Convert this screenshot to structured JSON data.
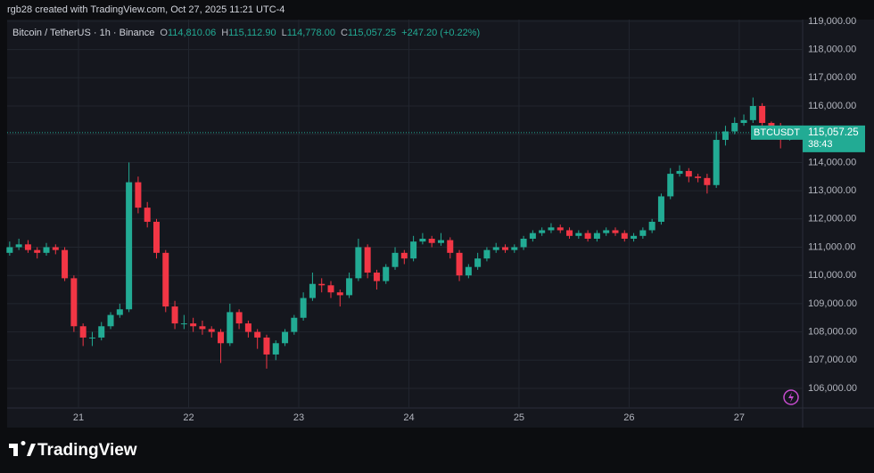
{
  "header": {
    "credit": "rgb28 created with TradingView.com, Oct 27, 2025 11:21 UTC-4",
    "symbol_info": "Bitcoin / TetherUS · 1h · Binance",
    "ohlc": [
      {
        "label": "O",
        "value": "114,810.06"
      },
      {
        "label": "H",
        "value": "115,112.90"
      },
      {
        "label": "L",
        "value": "114,778.00"
      },
      {
        "label": "C",
        "value": "115,057.25"
      }
    ],
    "change": "+247.20 (+0.22%)"
  },
  "chart_data": {
    "type": "candlestick",
    "categories": [
      null,
      null,
      null,
      null,
      null,
      null,
      null,
      null,
      "21",
      null,
      null,
      null,
      null,
      null,
      null,
      null,
      null,
      null,
      null,
      null,
      "22",
      null,
      null,
      null,
      null,
      null,
      null,
      null,
      null,
      null,
      null,
      null,
      "23",
      null,
      null,
      null,
      null,
      null,
      null,
      null,
      null,
      null,
      null,
      null,
      "24",
      null,
      null,
      null,
      null,
      null,
      null,
      null,
      null,
      null,
      null,
      null,
      "25",
      null,
      null,
      null,
      null,
      null,
      null,
      null,
      null,
      null,
      null,
      null,
      "26",
      null,
      null,
      null,
      null,
      null,
      null,
      null,
      null,
      null,
      null,
      null,
      "27",
      null,
      null,
      null,
      null,
      null
    ],
    "series": [
      {
        "name": "BTCUSDT",
        "up_color": "#22ab94",
        "down_color": "#f23645",
        "open": [
          110800,
          111000,
          111100,
          110900,
          110800,
          111000,
          110900,
          109900,
          108200,
          107800,
          107800,
          108200,
          108600,
          108800,
          113300,
          112400,
          111900,
          110800,
          108900,
          108300,
          108300,
          108200,
          108100,
          108000,
          107600,
          108700,
          108300,
          108000,
          107800,
          107200,
          107600,
          108000,
          108500,
          109200,
          109700,
          109650,
          109400,
          109300,
          109900,
          111000,
          110100,
          109800,
          110300,
          110800,
          110600,
          111200,
          111300,
          111150,
          111250,
          110800,
          110000,
          110300,
          110600,
          110900,
          111000,
          110900,
          111000,
          111300,
          111500,
          111600,
          111700,
          111600,
          111400,
          111500,
          111300,
          111500,
          111600,
          111500,
          111300,
          111400,
          111600,
          111900,
          112800,
          113600,
          113700,
          113500,
          113450,
          113200,
          114800,
          115100,
          115400,
          115500,
          116000,
          115400,
          115300,
          114810.06
        ],
        "high": [
          111200,
          111300,
          111250,
          111000,
          111150,
          111100,
          111000,
          110000,
          108300,
          108000,
          108350,
          108700,
          109000,
          114000,
          113500,
          112600,
          112000,
          110900,
          109100,
          108600,
          108500,
          108400,
          108200,
          108100,
          109000,
          108800,
          108400,
          108100,
          107900,
          107700,
          108100,
          108600,
          109400,
          110100,
          109900,
          109800,
          109500,
          110100,
          111300,
          111100,
          110200,
          110400,
          111000,
          110900,
          111400,
          111500,
          111400,
          111500,
          111350,
          110900,
          110400,
          110800,
          111000,
          111150,
          111100,
          111100,
          111400,
          111600,
          111700,
          111850,
          111800,
          111700,
          111600,
          111600,
          111600,
          111700,
          111700,
          111600,
          111500,
          111700,
          112000,
          112900,
          113800,
          113900,
          113800,
          113600,
          113600,
          115100,
          115300,
          115600,
          115700,
          116300,
          116100,
          115450,
          115400,
          115112.9
        ],
        "low": [
          110700,
          110900,
          110800,
          110600,
          110700,
          110750,
          109800,
          108000,
          107500,
          107500,
          107700,
          108100,
          108500,
          108700,
          112200,
          111700,
          110600,
          108700,
          108100,
          108100,
          108000,
          107900,
          107800,
          106900,
          107500,
          108100,
          107800,
          107400,
          106700,
          107000,
          107500,
          107900,
          108400,
          109100,
          109400,
          109200,
          108900,
          109200,
          109800,
          109900,
          109500,
          109700,
          110200,
          110400,
          110500,
          111100,
          111000,
          111050,
          110600,
          109800,
          109900,
          110200,
          110500,
          110800,
          110800,
          110800,
          110900,
          111200,
          111400,
          111500,
          111500,
          111300,
          111300,
          111200,
          111200,
          111400,
          111400,
          111200,
          111200,
          111300,
          111500,
          111800,
          112700,
          113500,
          113300,
          113300,
          112900,
          113100,
          114600,
          115000,
          115300,
          115400,
          115300,
          115100,
          114500,
          114778
        ],
        "close": [
          111000,
          111100,
          110900,
          110800,
          111000,
          110900,
          109900,
          108200,
          107800,
          107800,
          108200,
          108600,
          108800,
          113300,
          112400,
          111900,
          110800,
          108900,
          108300,
          108300,
          108200,
          108100,
          108000,
          107600,
          108700,
          108300,
          108000,
          107800,
          107200,
          107600,
          108000,
          108500,
          109200,
          109700,
          109650,
          109400,
          109300,
          109900,
          111000,
          110100,
          109800,
          110300,
          110800,
          110600,
          111200,
          111300,
          111150,
          111250,
          110800,
          110000,
          110300,
          110600,
          110900,
          111000,
          110900,
          111000,
          111300,
          111500,
          111600,
          111700,
          111600,
          111400,
          111500,
          111300,
          111500,
          111600,
          111500,
          111300,
          111400,
          111600,
          111900,
          112800,
          113600,
          113700,
          113500,
          113450,
          113200,
          114800,
          115100,
          115400,
          115500,
          116000,
          115400,
          115300,
          114810.06,
          115057.25
        ]
      }
    ],
    "last_price": {
      "value": 115057.25,
      "label": "115,057.25"
    },
    "countdown": "38:43",
    "ylim": [
      105306,
      119060
    ],
    "yticks": [
      {
        "value": 106000,
        "label": "106,000.00"
      },
      {
        "value": 107000,
        "label": "107,000.00"
      },
      {
        "value": 108000,
        "label": "108,000.00"
      },
      {
        "value": 109000,
        "label": "109,000.00"
      },
      {
        "value": 110000,
        "label": "110,000.00"
      },
      {
        "value": 111000,
        "label": "111,000.00"
      },
      {
        "value": 112000,
        "label": "112,000.00"
      },
      {
        "value": 113000,
        "label": "113,000.00"
      },
      {
        "value": 114000,
        "label": "114,000.00"
      },
      {
        "value": 115000,
        "label": "115,000.00"
      },
      {
        "value": 116000,
        "label": "116,000.00"
      },
      {
        "value": 117000,
        "label": "117,000.00"
      },
      {
        "value": 118000,
        "label": "118,000.00"
      },
      {
        "value": 119000,
        "label": "119,000.00"
      }
    ],
    "grid": true
  },
  "brand": "TradingView"
}
